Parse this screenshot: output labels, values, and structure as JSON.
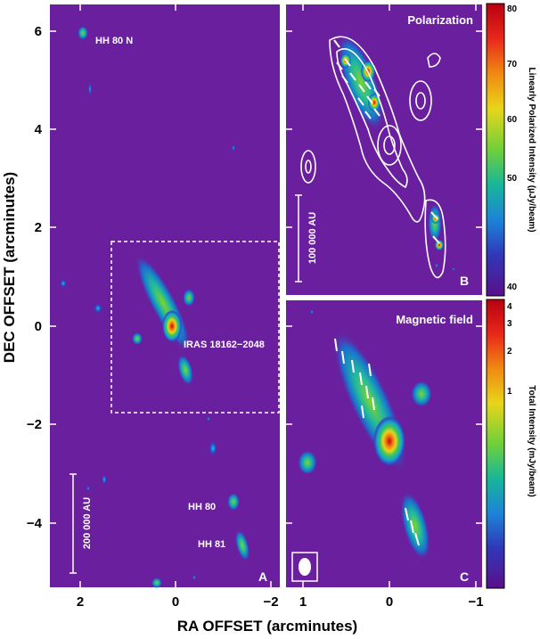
{
  "axes": {
    "xlabel": "RA OFFSET (arcminutes)",
    "ylabel": "DEC OFFSET (arcminutes)",
    "panel_a_xticks": [
      "2",
      "0",
      "−2"
    ],
    "panel_a_yticks": [
      "6",
      "4",
      "2",
      "0",
      "−2",
      "−4"
    ],
    "panel_c_xticks": [
      "1",
      "0",
      "−1"
    ]
  },
  "panel_a": {
    "letter": "A",
    "labels": {
      "hh80n": "HH 80 N",
      "iras": "IRAS 18162−2048",
      "hh80": "HH 80",
      "hh81": "HH 81"
    },
    "scalebar": "200 000 AU"
  },
  "panel_b": {
    "letter": "B",
    "title": "Polarization",
    "scalebar": "100 000 AU",
    "colorbar": {
      "title": "Linearly Polarized Intensity (μJy/beam)",
      "ticks": [
        "80",
        "70",
        "60",
        "50",
        "40"
      ]
    }
  },
  "panel_c": {
    "letter": "C",
    "title": "Magnetic field",
    "colorbar": {
      "title": "Total Intensity (mJy/beam)",
      "ticks": [
        "4",
        "3",
        "2",
        "1"
      ]
    }
  },
  "colors": {
    "background": "#6a1f9e",
    "frame": "#ffffff",
    "cmap": [
      "#5a0f8a",
      "#3b2ab8",
      "#1f5fd6",
      "#14a8c8",
      "#22c07a",
      "#7ed12a",
      "#e8d51a",
      "#f08a12",
      "#e0181a",
      "#b80010"
    ]
  }
}
